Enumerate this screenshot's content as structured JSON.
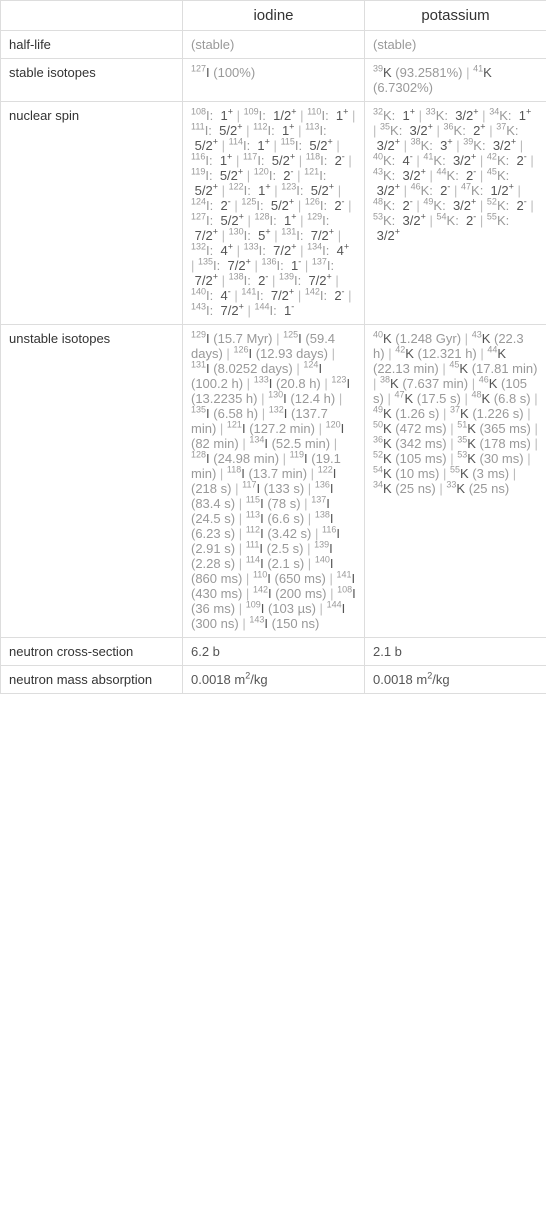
{
  "header": {
    "col1": "iodine",
    "col2": "potassium"
  },
  "rows": {
    "halflife": {
      "label": "half-life",
      "c1": "(stable)",
      "c2": "(stable)"
    },
    "stable": {
      "label": "stable isotopes",
      "c1_items": [
        {
          "sup": "127",
          "el": "I",
          "note": " (100%)"
        }
      ],
      "c2_items": [
        {
          "sup": "39",
          "el": "K",
          "note": " (93.2581%)"
        },
        {
          "sup": "41",
          "el": "K",
          "note": " (6.7302%)"
        }
      ]
    },
    "spin": {
      "label": "nuclear spin",
      "c1_spins": [
        {
          "s": "108",
          "e": "I",
          "v": "1",
          "sign": "+"
        },
        {
          "s": "109",
          "e": "I",
          "v": "1/2",
          "sign": "+"
        },
        {
          "s": "110",
          "e": "I",
          "v": "1",
          "sign": "+"
        },
        {
          "s": "111",
          "e": "I",
          "v": "5/2",
          "sign": "+"
        },
        {
          "s": "112",
          "e": "I",
          "v": "1",
          "sign": "+"
        },
        {
          "s": "113",
          "e": "I",
          "v": "5/2",
          "sign": "+"
        },
        {
          "s": "114",
          "e": "I",
          "v": "1",
          "sign": "+"
        },
        {
          "s": "115",
          "e": "I",
          "v": "5/2",
          "sign": "+"
        },
        {
          "s": "116",
          "e": "I",
          "v": "1",
          "sign": "+"
        },
        {
          "s": "117",
          "e": "I",
          "v": "5/2",
          "sign": "+"
        },
        {
          "s": "118",
          "e": "I",
          "v": "2",
          "sign": "-"
        },
        {
          "s": "119",
          "e": "I",
          "v": "5/2",
          "sign": "+"
        },
        {
          "s": "120",
          "e": "I",
          "v": "2",
          "sign": "-"
        },
        {
          "s": "121",
          "e": "I",
          "v": "5/2",
          "sign": "+"
        },
        {
          "s": "122",
          "e": "I",
          "v": "1",
          "sign": "+"
        },
        {
          "s": "123",
          "e": "I",
          "v": "5/2",
          "sign": "+"
        },
        {
          "s": "124",
          "e": "I",
          "v": "2",
          "sign": "-"
        },
        {
          "s": "125",
          "e": "I",
          "v": "5/2",
          "sign": "+"
        },
        {
          "s": "126",
          "e": "I",
          "v": "2",
          "sign": "-"
        },
        {
          "s": "127",
          "e": "I",
          "v": "5/2",
          "sign": "+"
        },
        {
          "s": "128",
          "e": "I",
          "v": "1",
          "sign": "+"
        },
        {
          "s": "129",
          "e": "I",
          "v": "7/2",
          "sign": "+"
        },
        {
          "s": "130",
          "e": "I",
          "v": "5",
          "sign": "+"
        },
        {
          "s": "131",
          "e": "I",
          "v": "7/2",
          "sign": "+"
        },
        {
          "s": "132",
          "e": "I",
          "v": "4",
          "sign": "+"
        },
        {
          "s": "133",
          "e": "I",
          "v": "7/2",
          "sign": "+"
        },
        {
          "s": "134",
          "e": "I",
          "v": "4",
          "sign": "+"
        },
        {
          "s": "135",
          "e": "I",
          "v": "7/2",
          "sign": "+"
        },
        {
          "s": "136",
          "e": "I",
          "v": "1",
          "sign": "-"
        },
        {
          "s": "137",
          "e": "I",
          "v": "7/2",
          "sign": "+"
        },
        {
          "s": "138",
          "e": "I",
          "v": "2",
          "sign": "-"
        },
        {
          "s": "139",
          "e": "I",
          "v": "7/2",
          "sign": "+"
        },
        {
          "s": "140",
          "e": "I",
          "v": "4",
          "sign": "-"
        },
        {
          "s": "141",
          "e": "I",
          "v": "7/2",
          "sign": "+"
        },
        {
          "s": "142",
          "e": "I",
          "v": "2",
          "sign": "-"
        },
        {
          "s": "143",
          "e": "I",
          "v": "7/2",
          "sign": "+"
        },
        {
          "s": "144",
          "e": "I",
          "v": "1",
          "sign": "-"
        }
      ],
      "c2_spins": [
        {
          "s": "32",
          "e": "K",
          "v": "1",
          "sign": "+"
        },
        {
          "s": "33",
          "e": "K",
          "v": "3/2",
          "sign": "+"
        },
        {
          "s": "34",
          "e": "K",
          "v": "1",
          "sign": "+"
        },
        {
          "s": "35",
          "e": "K",
          "v": "3/2",
          "sign": "+"
        },
        {
          "s": "36",
          "e": "K",
          "v": "2",
          "sign": "+"
        },
        {
          "s": "37",
          "e": "K",
          "v": "3/2",
          "sign": "+"
        },
        {
          "s": "38",
          "e": "K",
          "v": "3",
          "sign": "+"
        },
        {
          "s": "39",
          "e": "K",
          "v": "3/2",
          "sign": "+"
        },
        {
          "s": "40",
          "e": "K",
          "v": "4",
          "sign": "-"
        },
        {
          "s": "41",
          "e": "K",
          "v": "3/2",
          "sign": "+"
        },
        {
          "s": "42",
          "e": "K",
          "v": "2",
          "sign": "-"
        },
        {
          "s": "43",
          "e": "K",
          "v": "3/2",
          "sign": "+"
        },
        {
          "s": "44",
          "e": "K",
          "v": "2",
          "sign": "-"
        },
        {
          "s": "45",
          "e": "K",
          "v": "3/2",
          "sign": "+"
        },
        {
          "s": "46",
          "e": "K",
          "v": "2",
          "sign": "-"
        },
        {
          "s": "47",
          "e": "K",
          "v": "1/2",
          "sign": "+"
        },
        {
          "s": "48",
          "e": "K",
          "v": "2",
          "sign": "-"
        },
        {
          "s": "49",
          "e": "K",
          "v": "3/2",
          "sign": "+"
        },
        {
          "s": "52",
          "e": "K",
          "v": "2",
          "sign": "-"
        },
        {
          "s": "53",
          "e": "K",
          "v": "3/2",
          "sign": "+"
        },
        {
          "s": "54",
          "e": "K",
          "v": "2",
          "sign": "-"
        },
        {
          "s": "55",
          "e": "K",
          "v": "3/2",
          "sign": "+"
        }
      ]
    },
    "unstable": {
      "label": "unstable isotopes",
      "c1_iso": [
        {
          "s": "129",
          "e": "I",
          "n": " (15.7 Myr)"
        },
        {
          "s": "125",
          "e": "I",
          "n": " (59.4 days)"
        },
        {
          "s": "126",
          "e": "I",
          "n": " (12.93 days)"
        },
        {
          "s": "131",
          "e": "I",
          "n": " (8.0252 days)"
        },
        {
          "s": "124",
          "e": "I",
          "n": " (100.2 h)"
        },
        {
          "s": "133",
          "e": "I",
          "n": " (20.8 h)"
        },
        {
          "s": "123",
          "e": "I",
          "n": " (13.2235 h)"
        },
        {
          "s": "130",
          "e": "I",
          "n": " (12.4 h)"
        },
        {
          "s": "135",
          "e": "I",
          "n": " (6.58 h)"
        },
        {
          "s": "132",
          "e": "I",
          "n": " (137.7 min)"
        },
        {
          "s": "121",
          "e": "I",
          "n": " (127.2 min)"
        },
        {
          "s": "120",
          "e": "I",
          "n": " (82 min)"
        },
        {
          "s": "134",
          "e": "I",
          "n": " (52.5 min)"
        },
        {
          "s": "128",
          "e": "I",
          "n": " (24.98 min)"
        },
        {
          "s": "119",
          "e": "I",
          "n": " (19.1 min)"
        },
        {
          "s": "118",
          "e": "I",
          "n": " (13.7 min)"
        },
        {
          "s": "122",
          "e": "I",
          "n": " (218 s)"
        },
        {
          "s": "117",
          "e": "I",
          "n": " (133 s)"
        },
        {
          "s": "136",
          "e": "I",
          "n": " (83.4 s)"
        },
        {
          "s": "115",
          "e": "I",
          "n": " (78 s)"
        },
        {
          "s": "137",
          "e": "I",
          "n": " (24.5 s)"
        },
        {
          "s": "113",
          "e": "I",
          "n": " (6.6 s)"
        },
        {
          "s": "138",
          "e": "I",
          "n": " (6.23 s)"
        },
        {
          "s": "112",
          "e": "I",
          "n": " (3.42 s)"
        },
        {
          "s": "116",
          "e": "I",
          "n": " (2.91 s)"
        },
        {
          "s": "111",
          "e": "I",
          "n": " (2.5 s)"
        },
        {
          "s": "139",
          "e": "I",
          "n": " (2.28 s)"
        },
        {
          "s": "114",
          "e": "I",
          "n": " (2.1 s)"
        },
        {
          "s": "140",
          "e": "I",
          "n": " (860 ms)"
        },
        {
          "s": "110",
          "e": "I",
          "n": " (650 ms)"
        },
        {
          "s": "141",
          "e": "I",
          "n": " (430 ms)"
        },
        {
          "s": "142",
          "e": "I",
          "n": " (200 ms)"
        },
        {
          "s": "108",
          "e": "I",
          "n": " (36 ms)"
        },
        {
          "s": "109",
          "e": "I",
          "n": " (103 µs)"
        },
        {
          "s": "144",
          "e": "I",
          "n": " (300 ns)"
        },
        {
          "s": "143",
          "e": "I",
          "n": " (150 ns)"
        }
      ],
      "c2_iso": [
        {
          "s": "40",
          "e": "K",
          "n": " (1.248 Gyr)"
        },
        {
          "s": "43",
          "e": "K",
          "n": " (22.3 h)"
        },
        {
          "s": "42",
          "e": "K",
          "n": " (12.321 h)"
        },
        {
          "s": "44",
          "e": "K",
          "n": " (22.13 min)"
        },
        {
          "s": "45",
          "e": "K",
          "n": " (17.81 min)"
        },
        {
          "s": "38",
          "e": "K",
          "n": " (7.637 min)"
        },
        {
          "s": "46",
          "e": "K",
          "n": " (105 s)"
        },
        {
          "s": "47",
          "e": "K",
          "n": " (17.5 s)"
        },
        {
          "s": "48",
          "e": "K",
          "n": " (6.8 s)"
        },
        {
          "s": "49",
          "e": "K",
          "n": " (1.26 s)"
        },
        {
          "s": "37",
          "e": "K",
          "n": " (1.226 s)"
        },
        {
          "s": "50",
          "e": "K",
          "n": " (472 ms)"
        },
        {
          "s": "51",
          "e": "K",
          "n": " (365 ms)"
        },
        {
          "s": "36",
          "e": "K",
          "n": " (342 ms)"
        },
        {
          "s": "35",
          "e": "K",
          "n": " (178 ms)"
        },
        {
          "s": "52",
          "e": "K",
          "n": " (105 ms)"
        },
        {
          "s": "53",
          "e": "K",
          "n": " (30 ms)"
        },
        {
          "s": "54",
          "e": "K",
          "n": " (10 ms)"
        },
        {
          "s": "55",
          "e": "K",
          "n": " (3 ms)"
        },
        {
          "s": "34",
          "e": "K",
          "n": " (25 ns)"
        },
        {
          "s": "33",
          "e": "K",
          "n": " (25 ns)"
        }
      ]
    },
    "ncs": {
      "label": "neutron cross-section",
      "c1": "6.2 b",
      "c2": "2.1 b"
    },
    "nma": {
      "label": "neutron mass absorption",
      "c1_html": "0.0018 m<sup>2</sup>/kg",
      "c2_html": "0.0018 m<sup>2</sup>/kg"
    }
  },
  "colors": {
    "text": "#555",
    "grey": "#999",
    "border": "#ddd",
    "dark": "#333"
  },
  "layout": {
    "col0_w": 182,
    "col1_w": 182,
    "col2_w": 182
  }
}
